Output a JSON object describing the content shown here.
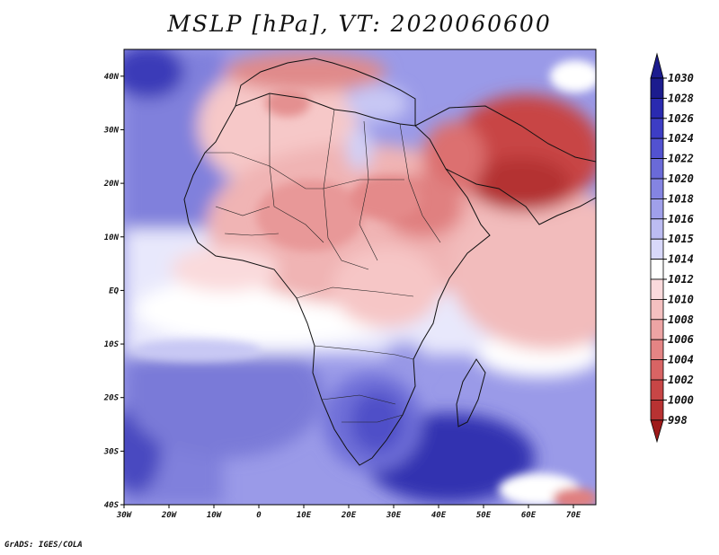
{
  "title": "MSLP [hPa], VT: 2020060600",
  "credit": "GrADS: IGES/COLA",
  "map": {
    "region": "Africa",
    "lon_range": [
      -30,
      75
    ],
    "lat_range": [
      -40,
      45
    ],
    "lon_ticks": [
      "30W",
      "20W",
      "10W",
      "0",
      "10E",
      "20E",
      "30E",
      "40E",
      "50E",
      "60E",
      "70E"
    ],
    "lat_ticks": [
      "40N",
      "30N",
      "20N",
      "10N",
      "EQ",
      "10S",
      "20S",
      "30S",
      "40S"
    ]
  },
  "colorbar": {
    "levels": [
      "1030",
      "1028",
      "1026",
      "1024",
      "1022",
      "1020",
      "1018",
      "1016",
      "1015",
      "1014",
      "1012",
      "1010",
      "1008",
      "1006",
      "1004",
      "1002",
      "1000",
      "998"
    ],
    "colors": [
      "#1c1c8e",
      "#2a2ab0",
      "#3d3dc4",
      "#5252d0",
      "#6a6ad8",
      "#8484e2",
      "#a0a0ea",
      "#bcbcf2",
      "#d8d8fa",
      "#ffffff",
      "#fadadc",
      "#f4c0c0",
      "#eda4a4",
      "#e48484",
      "#d86464",
      "#c84646",
      "#b83232",
      "#9e1a1a"
    ]
  }
}
